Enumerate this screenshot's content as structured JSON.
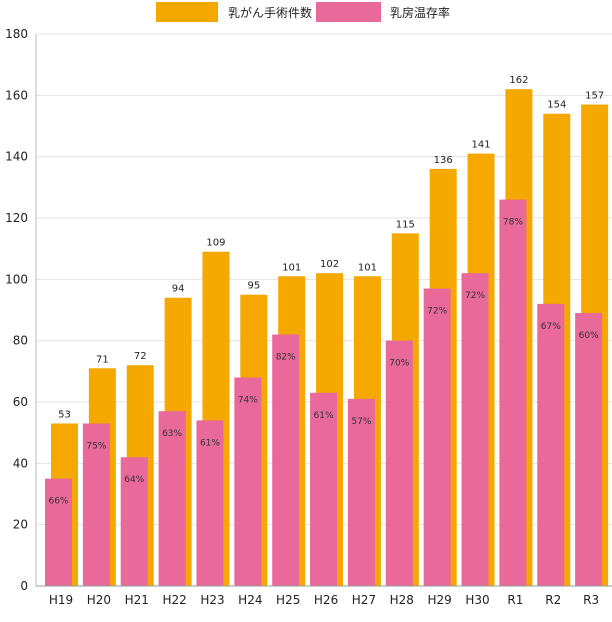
{
  "chart_data": {
    "type": "bar",
    "categories": [
      "H19",
      "H20",
      "H21",
      "H22",
      "H23",
      "H24",
      "H25",
      "H26",
      "H27",
      "H28",
      "H29",
      "H30",
      "R1",
      "R2",
      "R3"
    ],
    "series": [
      {
        "name": "乳がん手術件数",
        "color": "#f5a800",
        "values": [
          53,
          71,
          72,
          94,
          109,
          95,
          101,
          102,
          101,
          115,
          136,
          141,
          162,
          154,
          157
        ]
      },
      {
        "name": "乳房温存率",
        "color": "#e8699a",
        "values": [
          35,
          53,
          42,
          57,
          54,
          68,
          82,
          63,
          61,
          80,
          97,
          102,
          126,
          92,
          89
        ],
        "labels": [
          "66%",
          "75%",
          "64%",
          "63%",
          "61%",
          "74%",
          "82%",
          "61%",
          "57%",
          "70%",
          "72%",
          "72%",
          "78%",
          "67%",
          "60%"
        ]
      }
    ],
    "ylim": [
      0,
      180
    ],
    "yticks": [
      0,
      20,
      40,
      60,
      80,
      100,
      120,
      140,
      160,
      180
    ],
    "grid": true,
    "legend_position": "top-center"
  }
}
